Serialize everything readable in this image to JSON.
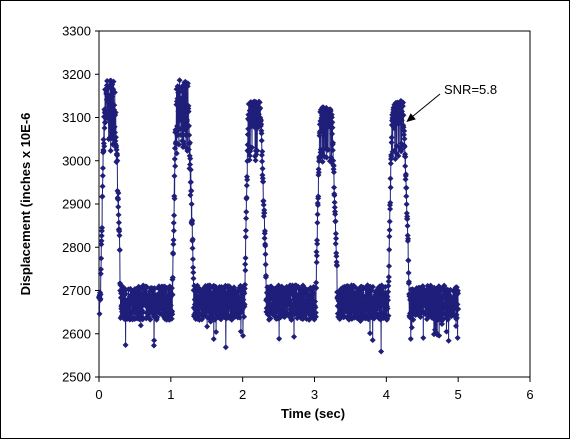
{
  "chart_data": {
    "type": "scatter",
    "title": "",
    "xlabel": "Time (sec)",
    "ylabel": "Displacement (inches x 10E-6",
    "xlim": [
      0,
      6
    ],
    "ylim": [
      2500,
      3300
    ],
    "xticks": [
      "0",
      "1",
      "2",
      "3",
      "4",
      "5",
      "6"
    ],
    "yticks": [
      "2500",
      "2600",
      "2700",
      "2800",
      "2900",
      "3000",
      "3100",
      "3200",
      "3300"
    ],
    "grid": false,
    "legend": "none",
    "marker": "diamond",
    "lines_connecting_points": true,
    "series_color": "#1f1f7a",
    "annotation": {
      "text": "SNR=5.8",
      "x": 4.25,
      "y": 3085
    },
    "sample_interval_sec": 0.01,
    "t_start_sec": 0,
    "t_end_sec": 5.0,
    "baseline_level": 2672,
    "baseline_noise_amplitude": 40,
    "peaks": [
      {
        "rise_start": 0.02,
        "top_start": 0.08,
        "top_end": 0.22,
        "fall_end": 0.3,
        "top_level": 3120,
        "max": 3190
      },
      {
        "rise_start": 1.02,
        "top_start": 1.08,
        "top_end": 1.24,
        "fall_end": 1.32,
        "top_level": 3110,
        "max": 3190
      },
      {
        "rise_start": 2.03,
        "top_start": 2.08,
        "top_end": 2.25,
        "fall_end": 2.33,
        "top_level": 3100,
        "max": 3140
      },
      {
        "rise_start": 3.02,
        "top_start": 3.08,
        "top_end": 3.24,
        "fall_end": 3.32,
        "top_level": 3095,
        "max": 3125
      },
      {
        "rise_start": 4.03,
        "top_start": 4.08,
        "top_end": 4.24,
        "fall_end": 4.32,
        "top_level": 3100,
        "max": 3140
      }
    ]
  }
}
